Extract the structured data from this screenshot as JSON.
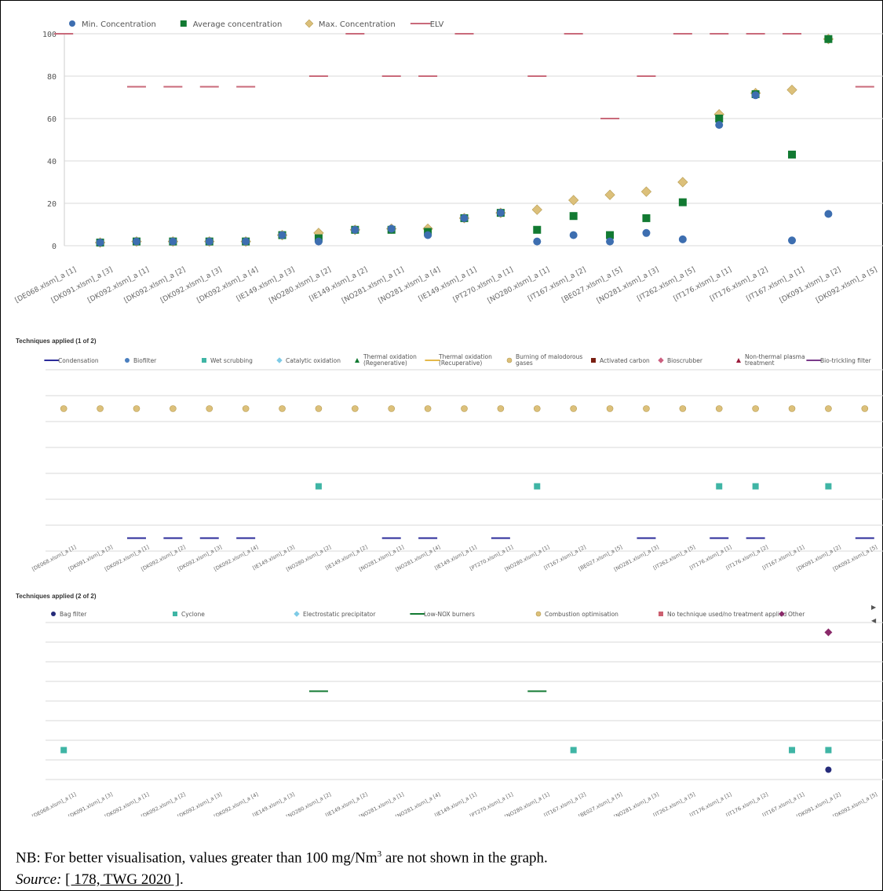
{
  "categories": [
    "[DE068.xlsm]_a [1]",
    "[DK091.xlsm]_a [3]",
    "[DK092.xlsm]_a [1]",
    "[DK092.xlsm]_a [2]",
    "[DK092.xlsm]_a [3]",
    "[DK092.xlsm]_a [4]",
    "[IE149.xlsm]_a [3]",
    "[NO280.xlsm]_a [2]",
    "[IE149.xlsm]_a [2]",
    "[NO281.xlsm]_a [1]",
    "[NO281.xlsm]_a [4]",
    "[IE149.xlsm]_a [1]",
    "[PT270.xlsm]_a [1]",
    "[NO280.xlsm]_a [1]",
    "[IT167.xlsm]_a [2]",
    "[BE027.xlsm]_a [5]",
    "[NO281.xlsm]_a [3]",
    "[IT262.xlsm]_a [5]",
    "[IT176.xlsm]_a [1]",
    "[IT176.xlsm]_a [2]",
    "[IT167.xlsm]_a [1]",
    "[DK091.xlsm]_a [2]",
    "[DK092.xlsm]_a [5]"
  ],
  "chart_data": [
    {
      "type": "scatter",
      "title": "",
      "xlabel": "",
      "ylabel": "",
      "ylim": [
        0,
        100
      ],
      "yticks": [
        0,
        20,
        40,
        60,
        80,
        100
      ],
      "grid": true,
      "legend_position": "top-left",
      "series": [
        {
          "name": "Min. Concentration",
          "marker": "circle",
          "color": "#3d6eb0",
          "values": [
            null,
            1.5,
            2,
            2,
            2,
            2,
            5,
            2,
            7.5,
            8,
            5,
            13,
            15.5,
            2,
            5,
            2,
            6,
            3,
            57,
            71,
            2.5,
            15,
            null
          ]
        },
        {
          "name": "Average concentration",
          "marker": "square",
          "color": "#127a32",
          "values": [
            null,
            1.5,
            2,
            2,
            2,
            2,
            5,
            3.5,
            7.5,
            7.5,
            6.5,
            13,
            15.5,
            7.5,
            14,
            5,
            13,
            20.5,
            60,
            71.5,
            43,
            97.5,
            null
          ]
        },
        {
          "name": "Max. Concentration",
          "marker": "diamond",
          "color": "#dcc07a",
          "values": [
            null,
            1.5,
            2,
            2,
            2,
            2,
            5,
            6,
            7.5,
            8,
            8,
            13,
            15.5,
            17,
            21.5,
            24,
            25.5,
            30,
            62,
            72,
            73.5,
            97.5,
            null
          ]
        },
        {
          "name": "ELV",
          "marker": "dash",
          "color": "#c96a7a",
          "values": [
            100,
            null,
            75,
            75,
            75,
            75,
            null,
            80,
            100,
            80,
            80,
            100,
            null,
            80,
            100,
            60,
            80,
            100,
            100,
            100,
            100,
            null,
            75
          ]
        }
      ]
    },
    {
      "type": "scatter",
      "title": "Techniques applied (1 of 2)",
      "grid": true,
      "legend_position": "top",
      "rows": 7,
      "series": [
        {
          "name": "Condensation",
          "marker": "dash",
          "color": "#2b2b9a",
          "row": 6,
          "points": [
            2,
            3,
            4,
            5,
            9,
            10,
            12,
            16,
            18,
            19,
            22
          ]
        },
        {
          "name": "Biofilter",
          "marker": "circle",
          "color": "#4a7fbf",
          "row": null,
          "points": []
        },
        {
          "name": "Wet scrubbing",
          "marker": "square",
          "color": "#3fb5a5",
          "row": 4,
          "points": [
            7,
            13,
            18,
            19,
            21
          ]
        },
        {
          "name": "Catalytic oxidation",
          "marker": "diamond",
          "color": "#7ecbe6",
          "row": null,
          "points": []
        },
        {
          "name": "Thermal oxidation\n(Regenerative)",
          "marker": "triangle",
          "color": "#127a32",
          "row": null,
          "points": []
        },
        {
          "name": "Thermal oxidation\n(Recuperative)",
          "marker": "dash",
          "color": "#e5b94b",
          "row": null,
          "points": []
        },
        {
          "name": "Burning of malodorous\ngases",
          "marker": "circle",
          "color": "#dcc07a",
          "row": 1,
          "points": [
            0,
            1,
            2,
            3,
            4,
            5,
            6,
            7,
            8,
            9,
            10,
            11,
            12,
            13,
            14,
            15,
            16,
            17,
            18,
            19,
            20,
            21,
            22
          ]
        },
        {
          "name": "Activated carbon",
          "marker": "square",
          "color": "#7a1f12",
          "row": null,
          "points": []
        },
        {
          "name": "Bioscrubber",
          "marker": "diamond",
          "color": "#cc6080",
          "row": null,
          "points": []
        },
        {
          "name": "Non-thermal plasma\ntreatment",
          "marker": "triangle",
          "color": "#9a1a3a",
          "row": null,
          "points": []
        },
        {
          "name": "Bio-trickling filter",
          "marker": "dash",
          "color": "#7a3a8a",
          "row": null,
          "points": []
        }
      ]
    },
    {
      "type": "scatter",
      "title": "Techniques applied (2 of 2)",
      "grid": true,
      "legend_position": "top",
      "rows": 8,
      "series": [
        {
          "name": "Bag filter",
          "marker": "circle",
          "color": "#252b7a",
          "row": 7,
          "points": [
            21
          ]
        },
        {
          "name": "Cyclone",
          "marker": "square",
          "color": "#3fb5a5",
          "row": 6,
          "points": [
            0,
            14,
            20,
            21
          ]
        },
        {
          "name": "Electrostatic precipitator",
          "marker": "diamond",
          "color": "#7ecbe6",
          "row": null,
          "points": []
        },
        {
          "name": "Low-NOX burners",
          "marker": "dash",
          "color": "#127a32",
          "row": 3,
          "points": [
            7,
            13
          ]
        },
        {
          "name": "Combustion optimisation",
          "marker": "circle",
          "color": "#dcc07a",
          "row": null,
          "points": []
        },
        {
          "name": "No technique used/no treatment applied",
          "marker": "square",
          "color": "#cc6070",
          "row": null,
          "points": []
        },
        {
          "name": "Other",
          "marker": "diamond",
          "color": "#8a2a6a",
          "row": 0,
          "points": [
            21
          ]
        }
      ]
    }
  ],
  "note": {
    "text_before_sup": "NB: For better visualisation, values greater than 100 mg/Nm",
    "sup": "3",
    "text_after_sup": " are not shown in the graph.",
    "source_label": "Source:",
    "source_ref": "[ 178, TWG 2020 ]",
    "source_end": "."
  },
  "nav": {
    "next_icon": "triangle-right-icon",
    "prev_icon": "triangle-left-icon"
  }
}
